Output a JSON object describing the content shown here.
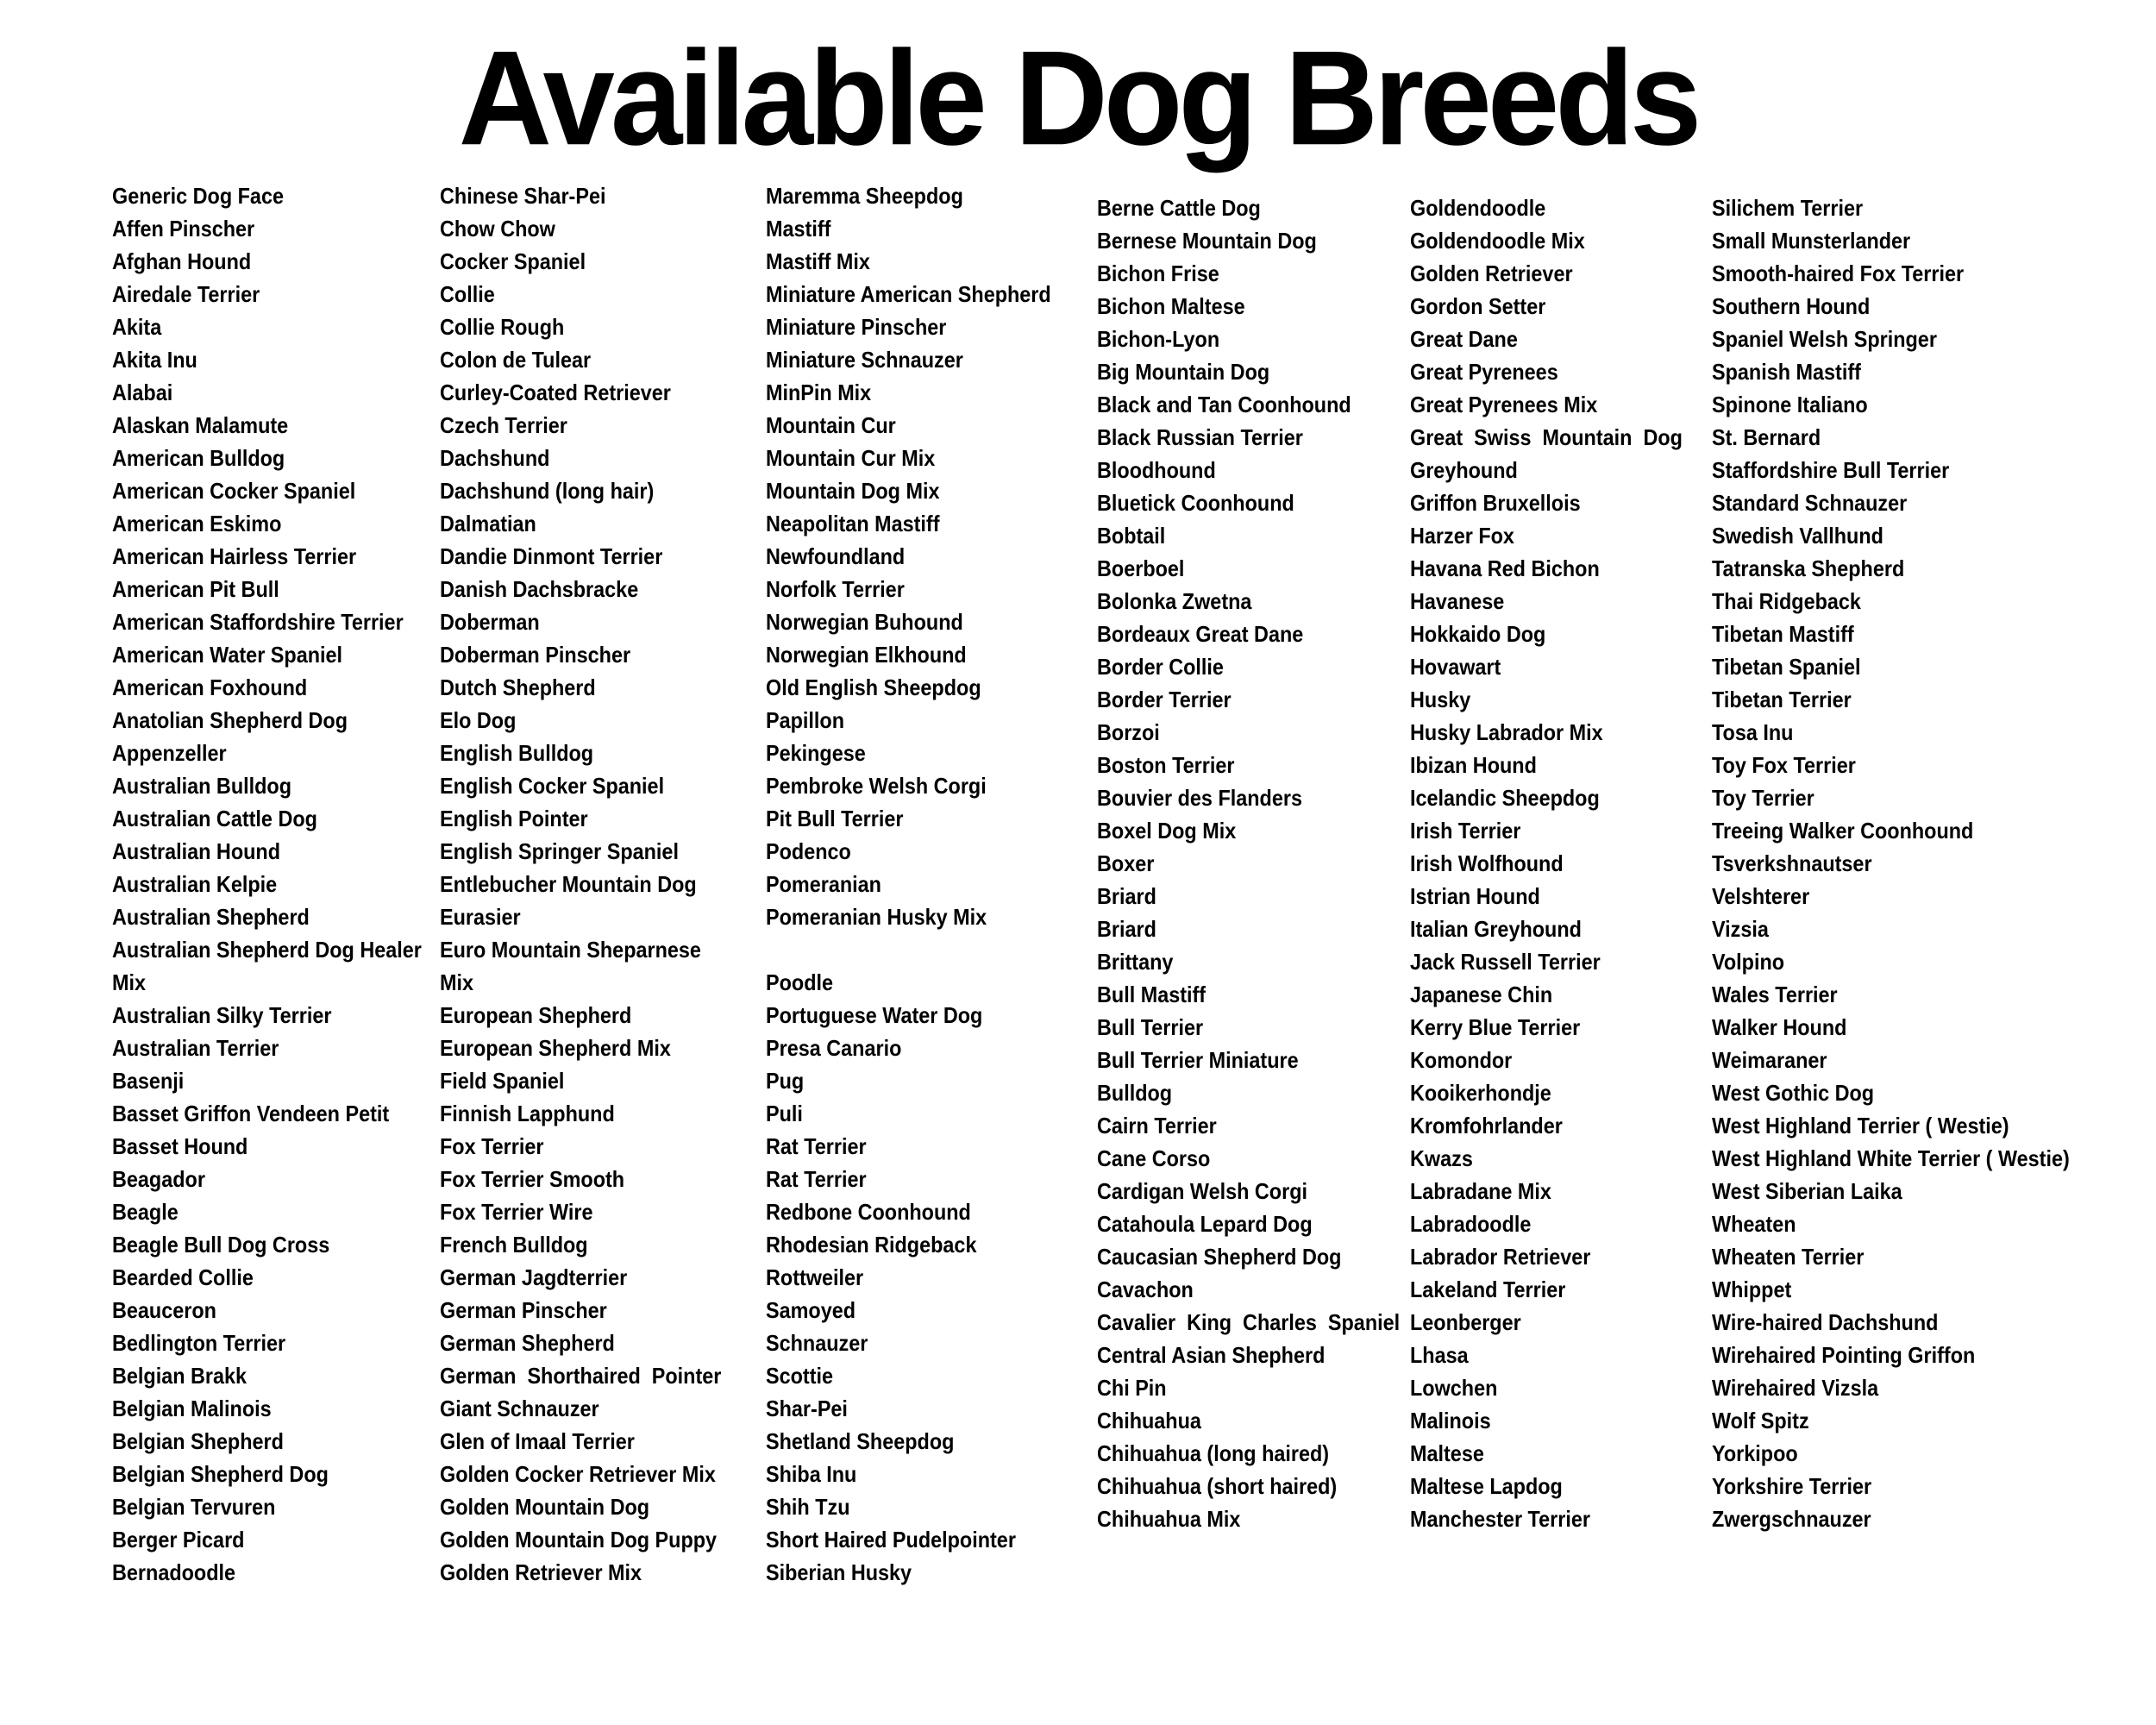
{
  "title": "Available Dog Breeds",
  "background_color": "#ffffff",
  "text_color": "#000000",
  "columns": [
    {
      "name": "column-1",
      "items": [
        "Generic Dog Face",
        "Affen Pinscher",
        "Afghan Hound",
        "Airedale Terrier",
        "Akita",
        "Akita Inu",
        "Alabai",
        "Alaskan Malamute",
        "American Bulldog",
        "American Cocker Spaniel",
        "American Eskimo",
        "American Hairless Terrier",
        "American Pit Bull",
        "American Staffordshire Terrier",
        "American Water Spaniel",
        "American Foxhound",
        "Anatolian Shepherd Dog",
        "Appenzeller",
        "Australian Bulldog",
        "Australian Cattle Dog",
        "Australian Hound",
        "Australian Kelpie",
        "Australian Shepherd",
        "Australian Shepherd Dog Healer\nMix",
        "Australian Silky Terrier",
        "Australian Terrier",
        "Basenji",
        "Basset Griffon Vendeen Petit",
        "Basset Hound",
        "Beagador",
        "Beagle",
        "Beagle Bull Dog Cross",
        "Bearded Collie",
        "Beauceron",
        "Bedlington Terrier",
        "Belgian Brakk",
        "Belgian Malinois",
        "Belgian Shepherd",
        "Belgian Shepherd Dog",
        "Belgian Tervuren",
        "Berger Picard",
        "Bernadoodle"
      ]
    },
    {
      "name": "column-2",
      "items": [
        "Chinese Shar-Pei",
        "Chow Chow",
        "Cocker Spaniel",
        "Collie",
        "Collie Rough",
        "Colon de Tulear",
        "Curley-Coated Retriever",
        "Czech Terrier",
        "Dachshund",
        "Dachshund (long hair)",
        "Dalmatian",
        "Dandie Dinmont Terrier",
        "Danish Dachsbracke",
        "Doberman",
        "Doberman Pinscher",
        "Dutch Shepherd",
        "Elo Dog",
        "English Bulldog",
        "English Cocker Spaniel",
        "English Pointer",
        "English Springer Spaniel",
        "Entlebucher Mountain Dog",
        "Eurasier",
        "Euro Mountain Sheparnese\nMix",
        "European Shepherd",
        "European Shepherd Mix",
        "Field Spaniel",
        "Finnish Lapphund",
        "Fox Terrier",
        "Fox Terrier Smooth",
        "Fox Terrier Wire",
        "French Bulldog",
        "German Jagdterrier",
        "German Pinscher",
        "German Shepherd",
        "German  Shorthaired  Pointer",
        "Giant Schnauzer",
        "Glen of Imaal Terrier",
        "Golden Cocker Retriever Mix",
        "Golden Mountain Dog",
        "Golden Mountain Dog Puppy",
        "Golden Retriever Mix"
      ]
    },
    {
      "name": "column-3",
      "items": [
        "Maremma Sheepdog",
        "Mastiff",
        "Mastiff Mix",
        "Miniature American Shepherd",
        "Miniature Pinscher",
        "Miniature Schnauzer",
        "MinPin Mix",
        "Mountain Cur",
        "Mountain Cur Mix",
        "Mountain Dog Mix",
        "Neapolitan Mastiff",
        "Newfoundland",
        "Norfolk Terrier",
        "Norwegian Buhound",
        "Norwegian Elkhound",
        "Old English Sheepdog",
        "Papillon",
        "Pekingese",
        "Pembroke Welsh Corgi",
        "Pit Bull Terrier",
        "Podenco",
        "Pomeranian",
        "Pomeranian Husky Mix",
        "",
        "Poodle",
        "Portuguese Water Dog",
        "Presa Canario",
        "Pug",
        "Puli",
        "Rat Terrier",
        "Rat Terrier",
        "Redbone Coonhound",
        "Rhodesian Ridgeback",
        "Rottweiler",
        "Samoyed",
        "Schnauzer",
        "Scottie",
        "Shar-Pei",
        "Shetland Sheepdog",
        "Shiba Inu",
        "Shih Tzu",
        "Short Haired Pudelpointer",
        "Siberian Husky"
      ]
    },
    {
      "name": "column-4",
      "items": [
        "Berne Cattle Dog",
        "Bernese Mountain Dog",
        "Bichon Frise",
        "Bichon Maltese",
        "Bichon-Lyon",
        "Big Mountain Dog",
        "Black and Tan Coonhound",
        "Black Russian Terrier",
        "Bloodhound",
        "Bluetick Coonhound",
        "Bobtail",
        "Boerboel",
        "Bolonka Zwetna",
        "Bordeaux Great Dane",
        "Border Collie",
        "Border Terrier",
        "Borzoi",
        "Boston Terrier",
        "Bouvier des Flanders",
        "Boxel Dog Mix",
        "Boxer",
        "Briard",
        "Briard",
        "Brittany",
        "Bull Mastiff",
        "Bull Terrier",
        "Bull Terrier Miniature",
        "Bulldog",
        "Cairn Terrier",
        "Cane Corso",
        "Cardigan Welsh Corgi",
        "Catahoula Lepard Dog",
        "Caucasian Shepherd Dog",
        "Cavachon",
        "Cavalier  King  Charles  Spaniel",
        "Central Asian Shepherd",
        "Chi Pin",
        "Chihuahua",
        "Chihuahua (long haired)",
        "Chihuahua (short haired)",
        "Chihuahua Mix"
      ]
    },
    {
      "name": "column-5",
      "items": [
        "Goldendoodle",
        "Goldendoodle Mix",
        "Golden Retriever",
        "Gordon Setter",
        "Great Dane",
        "Great Pyrenees",
        "Great Pyrenees Mix",
        "Great  Swiss  Mountain  Dog",
        "Greyhound",
        "Griffon Bruxellois",
        "Harzer Fox",
        "Havana Red Bichon",
        "Havanese",
        "Hokkaido Dog",
        "Hovawart",
        "Husky",
        "Husky Labrador Mix",
        "Ibizan Hound",
        "Icelandic Sheepdog",
        "Irish Terrier",
        "Irish Wolfhound",
        "Istrian Hound",
        "Italian Greyhound",
        "Jack Russell Terrier",
        "Japanese Chin",
        "Kerry Blue Terrier",
        "Komondor",
        "Kooikerhondje",
        "Kromfohrlander",
        "Kwazs",
        "Labradane Mix",
        "Labradoodle",
        "Labrador Retriever",
        "Lakeland Terrier",
        "Leonberger",
        "Lhasa",
        "Lowchen",
        "Malinois",
        "Maltese",
        "Maltese Lapdog",
        "Manchester Terrier"
      ]
    },
    {
      "name": "column-6",
      "items": [
        "Silichem Terrier",
        "Small Munsterlander",
        "Smooth-haired Fox Terrier",
        "Southern Hound",
        "Spaniel Welsh Springer",
        "Spanish Mastiff",
        "Spinone Italiano",
        "St. Bernard",
        "Staffordshire Bull Terrier",
        "Standard Schnauzer",
        "Swedish Vallhund",
        "Tatranska Shepherd",
        "Thai Ridgeback",
        "Tibetan Mastiff",
        "Tibetan Spaniel",
        "Tibetan Terrier",
        "Tosa Inu",
        "Toy Fox Terrier",
        "Toy Terrier",
        "Treeing Walker Coonhound",
        "Tsverkshnautser",
        "Velshterer",
        "Vizsia",
        "Volpino",
        "Wales Terrier",
        "Walker Hound",
        "Weimaraner",
        "West Gothic Dog",
        "West Highland Terrier ( Westie)",
        "West Highland White Terrier ( Westie)",
        "West Siberian Laika",
        "Wheaten",
        "Wheaten Terrier",
        "Whippet",
        "Wire-haired Dachshund",
        "Wirehaired Pointing Griffon",
        "Wirehaired Vizsla",
        "Wolf Spitz",
        "Yorkipoo",
        "Yorkshire Terrier",
        "Zwergschnauzer"
      ]
    }
  ]
}
